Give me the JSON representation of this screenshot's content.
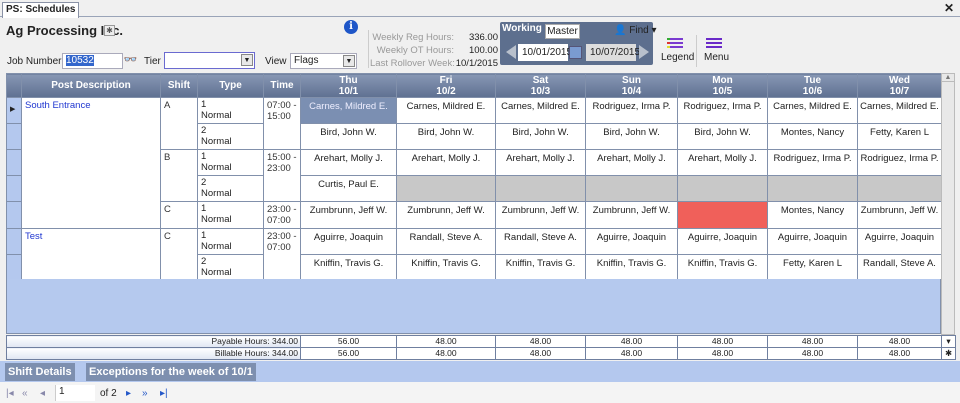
{
  "tab": {
    "label": "PS: Schedules"
  },
  "header": {
    "company": "Ag Processing Inc.",
    "job_number_label": "Job Number",
    "job_number": "10532",
    "tier_label": "Tier",
    "tier_value": "",
    "view_label": "View",
    "view_value": "Flags"
  },
  "stats": [
    {
      "label": "Weekly Reg Hours:",
      "value": "336.00"
    },
    {
      "label": "Weekly OT Hours:",
      "value": "100.00"
    },
    {
      "label": "Last Rollover Week:",
      "value": "10/1/2015"
    }
  ],
  "dates": {
    "working_tab": "Working",
    "master_tab": "Master",
    "start": "10/01/2015",
    "end": "10/07/2015"
  },
  "toolbar": {
    "find": "Find",
    "legend": "Legend",
    "menu": "Menu"
  },
  "grid": {
    "columns": [
      "Post Description",
      "Shift",
      "Type",
      "Time"
    ],
    "days": [
      {
        "dow": "Thu",
        "date": "10/1"
      },
      {
        "dow": "Fri",
        "date": "10/2"
      },
      {
        "dow": "Sat",
        "date": "10/3"
      },
      {
        "dow": "Sun",
        "date": "10/4"
      },
      {
        "dow": "Mon",
        "date": "10/5"
      },
      {
        "dow": "Tue",
        "date": "10/6"
      },
      {
        "dow": "Wed",
        "date": "10/7"
      }
    ],
    "rows": [
      {
        "post": "South Entrance",
        "post_span": 5,
        "shift": "A",
        "shift_span": 2,
        "time": "07:00 - 15:00",
        "type_num": "1",
        "type": "Normal",
        "cells": [
          {
            "name": "Carnes, Mildred E.",
            "status": "selected"
          },
          {
            "name": "Carnes, Mildred E."
          },
          {
            "name": "Carnes, Mildred E."
          },
          {
            "name": "Rodriguez, Irma P."
          },
          {
            "name": "Rodriguez, Irma P."
          },
          {
            "name": "Carnes, Mildred E."
          },
          {
            "name": "Carnes, Mildred E."
          }
        ]
      },
      {
        "type_num": "2",
        "type": "Normal",
        "cells": [
          {
            "name": "Bird, John W."
          },
          {
            "name": "Bird, John W."
          },
          {
            "name": "Bird, John W."
          },
          {
            "name": "Bird, John W."
          },
          {
            "name": "Bird, John W."
          },
          {
            "name": "Montes, Nancy"
          },
          {
            "name": "Fetty, Karen L"
          }
        ]
      },
      {
        "shift": "B",
        "shift_span": 2,
        "time": "15:00 - 23:00",
        "type_num": "1",
        "type": "Normal",
        "cells": [
          {
            "name": "Arehart, Molly J."
          },
          {
            "name": "Arehart, Molly J."
          },
          {
            "name": "Arehart, Molly J."
          },
          {
            "name": "Arehart, Molly J."
          },
          {
            "name": "Arehart, Molly J."
          },
          {
            "name": "Rodriguez, Irma P."
          },
          {
            "name": "Rodriguez, Irma P."
          }
        ]
      },
      {
        "type_num": "2",
        "type": "Normal",
        "cells": [
          {
            "name": "Curtis, Paul E."
          },
          {
            "name": "",
            "status": "unfilled"
          },
          {
            "name": "",
            "status": "unfilled"
          },
          {
            "name": "",
            "status": "unfilled"
          },
          {
            "name": "",
            "status": "unfilled"
          },
          {
            "name": "",
            "status": "unfilled"
          },
          {
            "name": "",
            "status": "unfilled"
          }
        ]
      },
      {
        "shift": "C",
        "shift_span": 1,
        "time": "23:00 - 07:00",
        "type_num": "1",
        "type": "Normal",
        "cells": [
          {
            "name": "Zumbrunn, Jeff W."
          },
          {
            "name": "Zumbrunn, Jeff W."
          },
          {
            "name": "Zumbrunn, Jeff W."
          },
          {
            "name": "Zumbrunn, Jeff W."
          },
          {
            "name": "",
            "status": "exception"
          },
          {
            "name": "Montes, Nancy"
          },
          {
            "name": "Zumbrunn, Jeff W."
          }
        ]
      },
      {
        "post": "Test",
        "post_span": 2,
        "shift": "C",
        "shift_span": 2,
        "time": "23:00 - 07:00",
        "type_num": "1",
        "type": "Normal",
        "cells": [
          {
            "name": "Aguirre, Joaquin"
          },
          {
            "name": "Randall, Steve A."
          },
          {
            "name": "Randall, Steve A."
          },
          {
            "name": "Aguirre, Joaquin"
          },
          {
            "name": "Aguirre, Joaquin"
          },
          {
            "name": "Aguirre, Joaquin"
          },
          {
            "name": "Aguirre, Joaquin"
          }
        ]
      },
      {
        "type_num": "2",
        "type": "Normal",
        "cells": [
          {
            "name": "Kniffin, Travis G."
          },
          {
            "name": "Kniffin, Travis G."
          },
          {
            "name": "Kniffin, Travis G."
          },
          {
            "name": "Kniffin, Travis G."
          },
          {
            "name": "Kniffin, Travis G."
          },
          {
            "name": "Fetty, Karen L"
          },
          {
            "name": "Randall, Steve A."
          }
        ]
      }
    ]
  },
  "totals": [
    {
      "label": "Payable Hours: 344.00",
      "values": [
        "56.00",
        "48.00",
        "48.00",
        "48.00",
        "48.00",
        "48.00",
        "48.00"
      ]
    },
    {
      "label": "Billable Hours: 344.00",
      "values": [
        "56.00",
        "48.00",
        "48.00",
        "48.00",
        "48.00",
        "48.00",
        "48.00"
      ]
    }
  ],
  "bottom_tabs": [
    "Shift Details",
    "Exceptions for the week of 10/1"
  ],
  "pager": {
    "page": "1",
    "of": "of 2"
  },
  "colors": {
    "header": "#6a7b9b",
    "row_header": "#b4c8ee",
    "selected": "#7b8fb2",
    "unfilled": "#c8c8c8",
    "exception": "#f0605a",
    "post_link": "#1f36d0"
  }
}
